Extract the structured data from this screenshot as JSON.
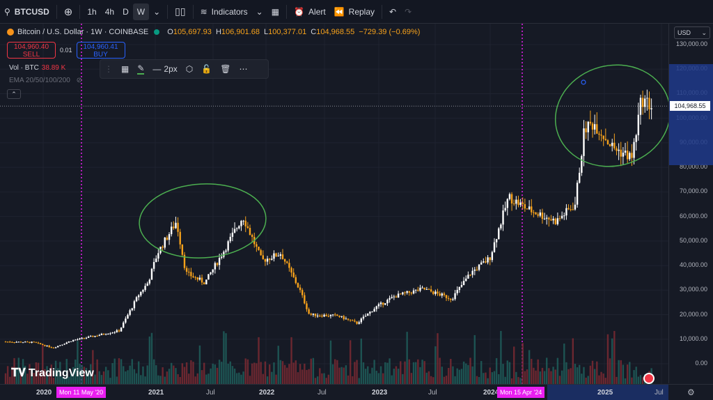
{
  "toolbar": {
    "symbol": "BTCUSD",
    "intervals": [
      "1h",
      "4h",
      "D",
      "W"
    ],
    "active_interval": "W",
    "indicators_label": "Indicators",
    "alert_label": "Alert",
    "replay_label": "Replay"
  },
  "legend": {
    "title": "Bitcoin / U.S. Dollar · 1W · COINBASE",
    "open_label": "O",
    "open": "105,697.93",
    "high_label": "H",
    "high": "106,901.68",
    "low_label": "L",
    "low": "100,377.01",
    "close_label": "C",
    "close": "104,968.55",
    "change": "−729.39 (−0.69%)"
  },
  "trade": {
    "sell_price": "104,960.40",
    "sell_label": "SELL",
    "spread": "0.01",
    "buy_price": "104,960.41",
    "buy_label": "BUY"
  },
  "volume": {
    "label": "Vol · BTC",
    "value": "38.89 K"
  },
  "ema_label": "EMA 20/50/100/200",
  "draw_toolbar": {
    "width_label": "2px"
  },
  "price_axis": {
    "currency": "USD",
    "current_price": "104,968.55",
    "labels": [
      "130,000.00",
      "120,000.00",
      "110,000.00",
      "100,000.00",
      "90,000.00",
      "80,000.00",
      "70,000.00",
      "60,000.00",
      "50,000.00",
      "40,000.00",
      "30,000.00",
      "20,000.00",
      "10,000.00",
      "0.00"
    ]
  },
  "time_axis": {
    "labels": [
      "2020",
      "2021",
      "Jul",
      "2022",
      "Jul",
      "2023",
      "Jul",
      "2024",
      "2025",
      "Jul"
    ],
    "marker_left": "Mon 11 May '20",
    "marker_right": "Mon 15 Apr '24"
  },
  "brand": "TradingView",
  "colors": {
    "up": "#ffffff",
    "down": "#f7a21b",
    "vol_up": "#1f5e5a",
    "vol_down": "#7a2a33",
    "marker": "#e91ef0",
    "annotation": "#4caf50"
  },
  "chart_data": {
    "type": "candlestick",
    "title": "Bitcoin / U.S. Dollar · 1W · COINBASE",
    "xlabel": "",
    "ylabel": "",
    "x_range": [
      "2019-10",
      "2025-07"
    ],
    "ylim": [
      -5000,
      135000
    ],
    "series": [
      {
        "name": "BTCUSD",
        "x": [
          "2019-10",
          "2020-01",
          "2020-03",
          "2020-05",
          "2020-07",
          "2020-10",
          "2020-12",
          "2021-01",
          "2021-02",
          "2021-04",
          "2021-05",
          "2021-07",
          "2021-09",
          "2021-11",
          "2022-01",
          "2022-03",
          "2022-05",
          "2022-06",
          "2022-09",
          "2022-11",
          "2023-01",
          "2023-03",
          "2023-06",
          "2023-09",
          "2023-11",
          "2024-01",
          "2024-03",
          "2024-05",
          "2024-08",
          "2024-10",
          "2024-11",
          "2024-12",
          "2025-02",
          "2025-04",
          "2025-05",
          "2025-06"
        ],
        "close": [
          9000,
          8700,
          6500,
          9500,
          11000,
          13500,
          28000,
          33000,
          45000,
          58000,
          37000,
          33000,
          46000,
          60000,
          42000,
          45000,
          30000,
          20000,
          19500,
          16500,
          23000,
          27500,
          30500,
          26500,
          37000,
          43000,
          68000,
          63000,
          58000,
          65000,
          96000,
          98000,
          88000,
          84000,
          108000,
          104968.55
        ]
      }
    ]
  }
}
